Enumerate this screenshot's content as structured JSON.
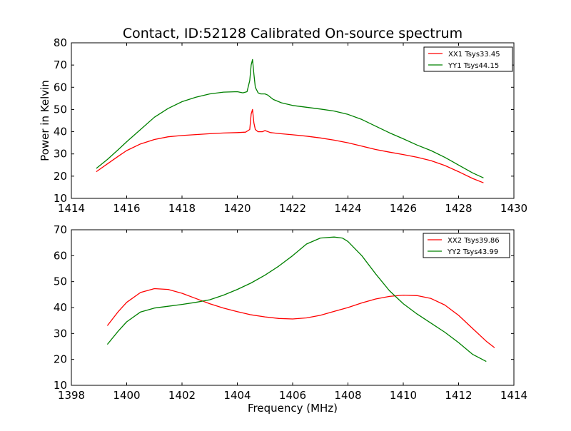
{
  "title": "Contact, ID:52128 Calibrated On-source spectrum",
  "chart_data": [
    {
      "type": "line",
      "title": "Contact, ID:52128 Calibrated On-source spectrum",
      "xlabel": "",
      "ylabel": "Power in Kelvin",
      "xlim": [
        1414,
        1430
      ],
      "ylim": [
        10,
        80
      ],
      "xticks": [
        "1414",
        "1416",
        "1418",
        "1420",
        "1422",
        "1424",
        "1426",
        "1428",
        "1430"
      ],
      "yticks": [
        "10",
        "20",
        "30",
        "40",
        "50",
        "60",
        "70",
        "80"
      ],
      "grid": false,
      "legend": "top-right",
      "series": [
        {
          "name": "XX1 Tsys33.45",
          "color": "#ff0000",
          "x": [
            1414.9,
            1415.3,
            1415.7,
            1416.0,
            1416.5,
            1417.0,
            1417.5,
            1418.0,
            1418.5,
            1419.0,
            1419.5,
            1420.0,
            1420.3,
            1420.45,
            1420.5,
            1420.55,
            1420.6,
            1420.65,
            1420.75,
            1420.9,
            1421.0,
            1421.2,
            1421.5,
            1422.0,
            1422.5,
            1423.0,
            1423.5,
            1424.0,
            1424.5,
            1425.0,
            1425.5,
            1426.0,
            1426.5,
            1427.0,
            1427.5,
            1428.0,
            1428.5,
            1428.9
          ],
          "y": [
            22.0,
            25.5,
            29.0,
            31.5,
            34.5,
            36.5,
            37.7,
            38.3,
            38.7,
            39.1,
            39.4,
            39.6,
            39.8,
            41.0,
            48.0,
            50.0,
            44.0,
            41.0,
            40.0,
            40.0,
            40.5,
            39.6,
            39.2,
            38.6,
            38.0,
            37.2,
            36.2,
            35.0,
            33.5,
            32.0,
            30.8,
            29.7,
            28.5,
            27.0,
            24.8,
            22.0,
            19.0,
            17.0
          ]
        },
        {
          "name": "YY1 Tsys44.15",
          "color": "#008000",
          "x": [
            1414.9,
            1415.3,
            1415.7,
            1416.0,
            1416.5,
            1417.0,
            1417.5,
            1418.0,
            1418.5,
            1419.0,
            1419.5,
            1420.0,
            1420.2,
            1420.35,
            1420.45,
            1420.5,
            1420.55,
            1420.6,
            1420.65,
            1420.75,
            1420.85,
            1421.0,
            1421.1,
            1421.3,
            1421.6,
            1422.0,
            1422.5,
            1423.0,
            1423.5,
            1424.0,
            1424.5,
            1425.0,
            1425.5,
            1426.0,
            1426.5,
            1427.0,
            1427.5,
            1428.0,
            1428.5,
            1428.9
          ],
          "y": [
            23.5,
            27.5,
            32.0,
            35.5,
            41.0,
            46.5,
            50.5,
            53.5,
            55.5,
            57.0,
            57.8,
            58.0,
            57.5,
            58.0,
            63.0,
            70.0,
            72.5,
            66.0,
            60.0,
            57.5,
            57.0,
            57.0,
            56.5,
            54.5,
            53.0,
            51.8,
            51.0,
            50.2,
            49.3,
            47.8,
            45.5,
            42.5,
            39.5,
            36.8,
            34.0,
            31.5,
            28.5,
            25.0,
            21.5,
            19.2
          ]
        }
      ]
    },
    {
      "type": "line",
      "title": "",
      "xlabel": "Frequency (MHz)",
      "ylabel": "",
      "xlim": [
        1398,
        1414
      ],
      "ylim": [
        10,
        70
      ],
      "xticks": [
        "1398",
        "1400",
        "1402",
        "1404",
        "1406",
        "1408",
        "1410",
        "1412",
        "1414"
      ],
      "yticks": [
        "10",
        "20",
        "30",
        "40",
        "50",
        "60",
        "70"
      ],
      "grid": false,
      "legend": "top-right",
      "series": [
        {
          "name": "XX2 Tsys39.86",
          "color": "#ff0000",
          "x": [
            1399.3,
            1399.7,
            1400.0,
            1400.5,
            1401.0,
            1401.5,
            1402.0,
            1402.5,
            1403.0,
            1403.5,
            1404.0,
            1404.5,
            1405.0,
            1405.5,
            1406.0,
            1406.5,
            1407.0,
            1407.5,
            1408.0,
            1408.5,
            1409.0,
            1409.5,
            1410.0,
            1410.5,
            1411.0,
            1411.5,
            1412.0,
            1412.5,
            1413.0,
            1413.3
          ],
          "y": [
            33.0,
            38.5,
            42.0,
            45.8,
            47.3,
            47.0,
            45.5,
            43.5,
            41.5,
            39.8,
            38.4,
            37.2,
            36.4,
            35.8,
            35.6,
            36.0,
            37.0,
            38.5,
            40.0,
            41.8,
            43.3,
            44.3,
            44.8,
            44.6,
            43.5,
            41.0,
            37.0,
            32.0,
            27.0,
            24.5
          ]
        },
        {
          "name": "YY2 Tsys43.99",
          "color": "#008000",
          "x": [
            1399.3,
            1399.7,
            1400.0,
            1400.5,
            1401.0,
            1401.5,
            1402.0,
            1402.5,
            1403.0,
            1403.5,
            1404.0,
            1404.5,
            1405.0,
            1405.5,
            1406.0,
            1406.5,
            1407.0,
            1407.5,
            1407.8,
            1408.0,
            1408.5,
            1409.0,
            1409.5,
            1410.0,
            1410.5,
            1411.0,
            1411.5,
            1412.0,
            1412.5,
            1413.0
          ],
          "y": [
            25.8,
            31.0,
            34.5,
            38.3,
            39.8,
            40.5,
            41.2,
            42.0,
            43.0,
            44.8,
            47.0,
            49.5,
            52.5,
            56.0,
            60.0,
            64.5,
            66.8,
            67.2,
            66.8,
            65.5,
            60.0,
            53.0,
            46.5,
            41.5,
            37.5,
            34.0,
            30.5,
            26.5,
            22.0,
            19.2
          ]
        }
      ]
    }
  ]
}
